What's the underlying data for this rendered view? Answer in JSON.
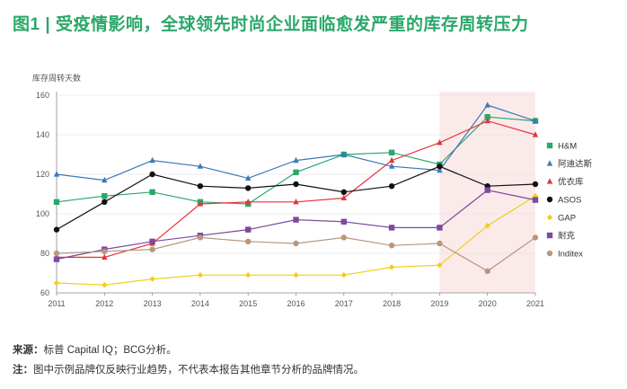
{
  "title": "图1 | 受疫情影响，全球领先时尚企业面临愈发严重的库存周转压力",
  "chart_data": {
    "type": "line",
    "ylabel": "库存周转天数",
    "xlabel": "",
    "ylim": [
      60,
      160
    ],
    "yticks": [
      60,
      80,
      100,
      120,
      140,
      160
    ],
    "x": [
      2011,
      2012,
      2013,
      2014,
      2015,
      2016,
      2017,
      2018,
      2019,
      2020,
      2021
    ],
    "highlight_range": [
      2019,
      2021
    ],
    "legend_position": "right",
    "series": [
      {
        "name": "H&M",
        "color": "#2aa76a",
        "marker": "square",
        "values": [
          106,
          109,
          111,
          106,
          105,
          121,
          130,
          131,
          125,
          149,
          147
        ]
      },
      {
        "name": "阿迪达斯",
        "color": "#3a79b8",
        "marker": "triangle",
        "values": [
          120,
          117,
          127,
          124,
          118,
          127,
          130,
          124,
          122,
          155,
          147
        ]
      },
      {
        "name": "优衣库",
        "color": "#e8323c",
        "marker": "triangle",
        "values": [
          78,
          78,
          85,
          105,
          106,
          106,
          108,
          127,
          136,
          147,
          140
        ]
      },
      {
        "name": "ASOS",
        "color": "#111111",
        "marker": "circle",
        "values": [
          92,
          106,
          120,
          114,
          113,
          115,
          111,
          114,
          124,
          114,
          115
        ]
      },
      {
        "name": "GAP",
        "color": "#f0cf1a",
        "marker": "diamond",
        "values": [
          65,
          64,
          67,
          69,
          69,
          69,
          69,
          73,
          74,
          94,
          109
        ]
      },
      {
        "name": "耐克",
        "color": "#7c4a9e",
        "marker": "square",
        "values": [
          77,
          82,
          86,
          89,
          92,
          97,
          96,
          93,
          93,
          112,
          107
        ]
      },
      {
        "name": "Inditex",
        "color": "#b8977e",
        "marker": "circle",
        "values": [
          80,
          81,
          82,
          88,
          86,
          85,
          88,
          84,
          85,
          71,
          88
        ]
      }
    ]
  },
  "footer": {
    "source_label": "来源：",
    "source_text": "标普 Capital IQ；BCG分析。",
    "note_label": "注：",
    "note_text": "图中示例品牌仅反映行业趋势，不代表本报告其他章节分析的品牌情况。"
  },
  "colors": {
    "title": "#2aa76a",
    "highlight_fill": "#fbeaea",
    "axis": "#888888",
    "gridline": "#dddddd"
  }
}
